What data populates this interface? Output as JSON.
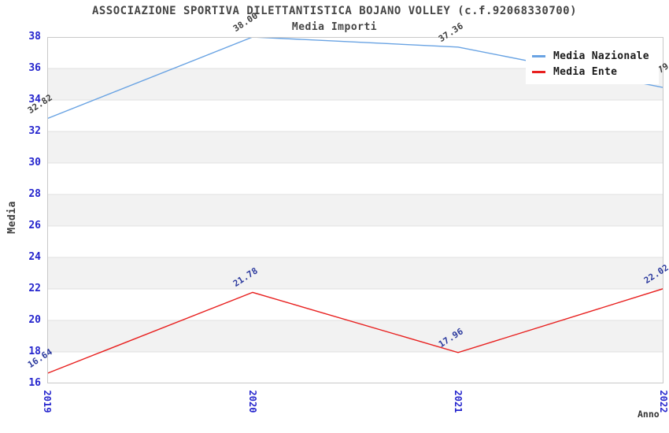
{
  "chart_data": {
    "type": "line",
    "title": "ASSOCIAZIONE SPORTIVA DILETTANTISTICA BOJANO VOLLEY (c.f.92068330700)",
    "subtitle": "Media Importi",
    "xlabel": "Anno",
    "ylabel": "Media",
    "x": [
      "2019",
      "2020",
      "2021",
      "2022"
    ],
    "ylim": [
      16,
      38
    ],
    "ytick_step": 2,
    "yticks": [
      38,
      36,
      34,
      32,
      30,
      28,
      26,
      24,
      22,
      20,
      18,
      16
    ],
    "grid": "horizontal-bands",
    "band_colors": [
      "#FFFFFF",
      "#F2F2F2"
    ],
    "gridline_color": "#E0E0E0",
    "plot_border_color": "#C8C8C8",
    "axis_tick_color": "#2525CD",
    "legend_position": "top-right",
    "series": [
      {
        "name": "Media Nazionale",
        "color": "#69A3E3",
        "label_color": "#3C3C3C",
        "values": [
          32.82,
          38.0,
          37.36,
          34.79
        ],
        "labels": [
          "32.82",
          "38.00",
          "37.36",
          "34.79"
        ]
      },
      {
        "name": "Media Ente",
        "color": "#E8201F",
        "label_color": "#2C3A9E",
        "values": [
          16.64,
          21.78,
          17.96,
          22.02
        ],
        "labels": [
          "16.64",
          "21.78",
          "17.96",
          "22.02"
        ]
      }
    ]
  }
}
